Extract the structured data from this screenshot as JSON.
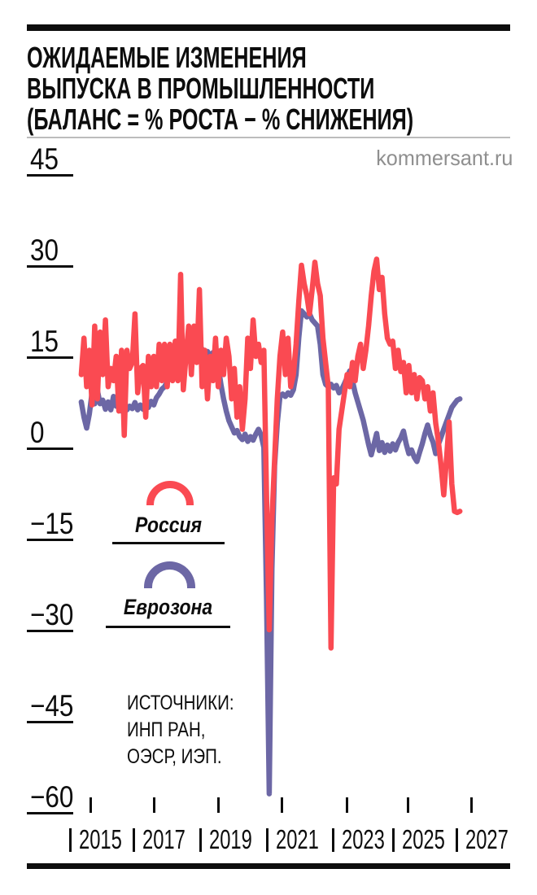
{
  "header": {
    "title_lines": [
      "ОЖИДАЕМЫЕ ИЗМЕНЕНИЯ",
      "ВЫПУСКА В ПРОМЫШЛЕННОСТИ",
      "(БАЛАНС = % РОСТА − % СНИЖЕНИЯ)"
    ],
    "watermark": "kommersant.ru"
  },
  "legend": [
    {
      "label": "Россия",
      "color": "#fa4a52"
    },
    {
      "label": "Еврозона",
      "color": "#6c67a5"
    }
  ],
  "sources_lines": [
    "ИСТОЧНИКИ:",
    "ИНП РАН,",
    "ОЭСР, ИЭП."
  ],
  "chart_data": {
    "type": "line",
    "title": "Ожидаемые изменения выпуска в промышленности (баланс = % роста − % снижения)",
    "grid": false,
    "legend_position": "middle-left",
    "y_axis": {
      "tick_values": [
        45,
        30,
        15,
        0,
        -15,
        -30,
        -45,
        -60
      ],
      "tick_labels": [
        "45",
        "30",
        "15",
        "0",
        "−15",
        "−30",
        "−45",
        "−60"
      ],
      "range": [
        -63,
        48
      ]
    },
    "x_axis": {
      "tick_labels": [
        "2015",
        "2017",
        "2019",
        "2021",
        "2023",
        "2025",
        "2027"
      ],
      "range": [
        2014.4,
        2027.3
      ]
    },
    "x_start": 2014.417,
    "x_step": 0.083333,
    "series": [
      {
        "name": "Россия",
        "color": "#fa4a52",
        "values": [
          12,
          18,
          10,
          16,
          7,
          20,
          8,
          19,
          12,
          21,
          10,
          13,
          11,
          15,
          6,
          16,
          2,
          16,
          13,
          14,
          22,
          9,
          13,
          13.5,
          5,
          15,
          10,
          15,
          10,
          17,
          11,
          17,
          10,
          17,
          11,
          17.5,
          11,
          28.5,
          9.5,
          15,
          20,
          12,
          20,
          14,
          26,
          10,
          16,
          8,
          15,
          11,
          18,
          10,
          16,
          12,
          18,
          15,
          8,
          13,
          5,
          10,
          3,
          8,
          18,
          13,
          21,
          15,
          17,
          14,
          16,
          -8,
          -30,
          -12,
          -2,
          8,
          15,
          19,
          12,
          18,
          10,
          12,
          17,
          24,
          30,
          27,
          25,
          22,
          26,
          30.5,
          27,
          25,
          18,
          14,
          10,
          -33,
          -5,
          -6,
          3,
          6,
          9,
          12,
          10,
          14,
          11,
          15,
          17,
          13,
          16,
          20,
          25,
          29,
          31,
          26,
          28,
          22,
          18,
          17,
          17.5,
          13,
          16,
          12.5,
          14,
          9,
          13.5,
          9,
          12,
          8,
          11.5,
          11,
          8,
          10,
          6,
          9,
          4,
          1,
          -3,
          -7.8,
          -2,
          4.2,
          -6,
          -10.5,
          -10.7,
          -10.5
        ]
      },
      {
        "name": "Еврозона",
        "color": "#6c67a5",
        "values": [
          7.5,
          5,
          3.2,
          5.5,
          9,
          7.2,
          9.4,
          7.2,
          7.8,
          6.3,
          7.5,
          6.2,
          8.4,
          6.8,
          7.6,
          6,
          7,
          6.2,
          6.8,
          6.4,
          7.4,
          6.2,
          7,
          6.3,
          7.2,
          6.6,
          7.6,
          7,
          8.2,
          8.8,
          9.6,
          10,
          10.8,
          11.6,
          13,
          12.2,
          13.6,
          14.4,
          15.4,
          15,
          16.2,
          17.5,
          19,
          16.4,
          15.6,
          16.2,
          15.2,
          15.8,
          15,
          15.6,
          14.6,
          13.4,
          10.4,
          8,
          6,
          4.4,
          3.4,
          2.4,
          2.8,
          1.8,
          1.3,
          2.2,
          1,
          1.8,
          1.2,
          2.2,
          3,
          2,
          0,
          -25,
          -57,
          -20,
          -3,
          4,
          8.4,
          8.8,
          8.4,
          9,
          8.6,
          9.5,
          12,
          18,
          22.5,
          22,
          21.5,
          22,
          21,
          20.5,
          20,
          17,
          12,
          10.4,
          10,
          10.4,
          9.8,
          10.2,
          9,
          9.6,
          10.5,
          11.5,
          12.6,
          11,
          9,
          7.5,
          6,
          4.5,
          2.5,
          0.5,
          -1.2,
          0.5,
          2.3,
          -0.5,
          0.8,
          -0.8,
          0.4,
          -0.6,
          0.6,
          -0.4,
          0.8,
          1.6,
          2.7,
          0.6,
          -1,
          -0.4,
          -1.6,
          -2.3,
          -0.8,
          0.6,
          2.3,
          3.7,
          2,
          0.9,
          -1,
          0.5,
          1.7,
          3,
          4.2,
          5.4,
          6.6,
          7.2,
          7.8,
          8
        ]
      }
    ],
    "sources": "ИСТОЧНИКИ: ИНП РАН, ОЭСР, ИЭП."
  }
}
